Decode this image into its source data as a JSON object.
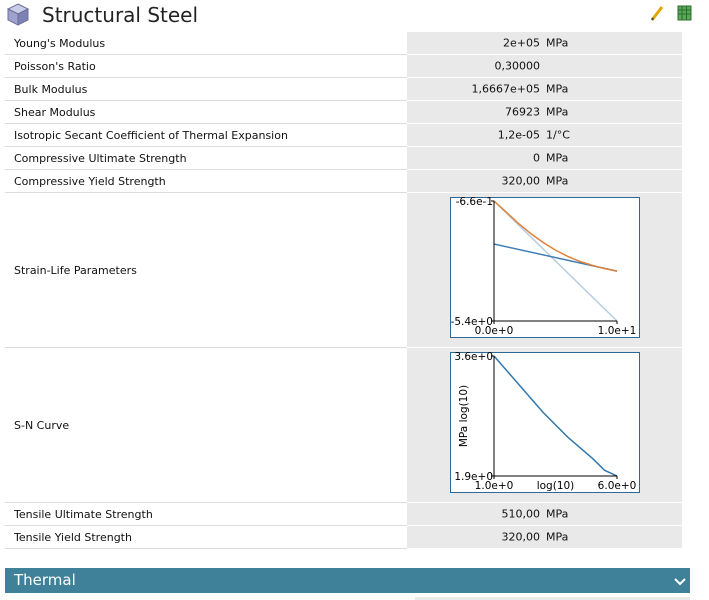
{
  "header": {
    "title": "Structural Steel"
  },
  "properties": [
    {
      "name": "Young's Modulus",
      "value": "2e+05",
      "unit": "MPa"
    },
    {
      "name": "Poisson's Ratio",
      "value": "0,30000"
    },
    {
      "name": "Bulk Modulus",
      "value": "1,6667e+05",
      "unit": "MPa"
    },
    {
      "name": "Shear Modulus",
      "value": "76923",
      "unit": "MPa"
    },
    {
      "name": "Isotropic Secant Coefficient of Thermal Expansion",
      "value": "1,2e-05",
      "unit": "1/°C"
    },
    {
      "name": "Compressive Ultimate Strength",
      "value": "0",
      "unit": "MPa"
    },
    {
      "name": "Compressive Yield Strength",
      "value": "320,00",
      "unit": "MPa"
    },
    {
      "name": "Strain-Life Parameters",
      "chart": {
        "type": "line",
        "xlim": [
          0,
          10
        ],
        "ylim": [
          -5.4,
          -0.66
        ],
        "xticks": [
          {
            "value": 0,
            "label": "0.0e+0"
          },
          {
            "value": 10,
            "label": "1.0e+1"
          }
        ],
        "yticks": [
          {
            "value": -0.66,
            "label": "-6.6e-1"
          },
          {
            "value": -5.4,
            "label": "-5.4e+0"
          }
        ],
        "series": [
          {
            "color": "#b7cde3",
            "x": [
              0,
              10
            ],
            "values": [
              -0.66,
              -5.4
            ]
          },
          {
            "color": "#3f7fb5",
            "x": [
              0,
              10
            ],
            "values": [
              -2.36,
              -3.43
            ]
          },
          {
            "color": "#e0823a",
            "x": [
              0,
              1,
              2,
              3,
              4,
              5,
              6,
              7,
              8,
              9,
              10
            ],
            "values": [
              -0.66,
              -1.1,
              -1.55,
              -1.95,
              -2.3,
              -2.6,
              -2.85,
              -3.05,
              -3.2,
              -3.33,
              -3.43
            ]
          }
        ]
      }
    },
    {
      "name": "S-N Curve",
      "chart": {
        "type": "line",
        "xlabel": "log(10)",
        "ylabel": "MPa log(10)",
        "xlim": [
          1,
          6
        ],
        "ylim": [
          1.9,
          3.6
        ],
        "xticks": [
          {
            "value": 1,
            "label": "1.0e+0"
          },
          {
            "value": 6,
            "label": "6.0e+0"
          }
        ],
        "yticks": [
          {
            "value": 3.6,
            "label": "3.6e+0"
          },
          {
            "value": 1.9,
            "label": "1.9e+0"
          }
        ],
        "series": [
          {
            "color": "#2f78b0",
            "x": [
              1,
              2,
              3,
              4,
              5,
              5.5,
              6
            ],
            "values": [
              3.6,
              3.2,
              2.8,
              2.45,
              2.15,
              1.98,
              1.9
            ]
          }
        ]
      }
    },
    {
      "name": "Tensile Ultimate Strength",
      "value": "510,00",
      "unit": "MPa"
    },
    {
      "name": "Tensile Yield Strength",
      "value": "320,00",
      "unit": "MPa"
    }
  ],
  "section": {
    "title": "Thermal"
  }
}
